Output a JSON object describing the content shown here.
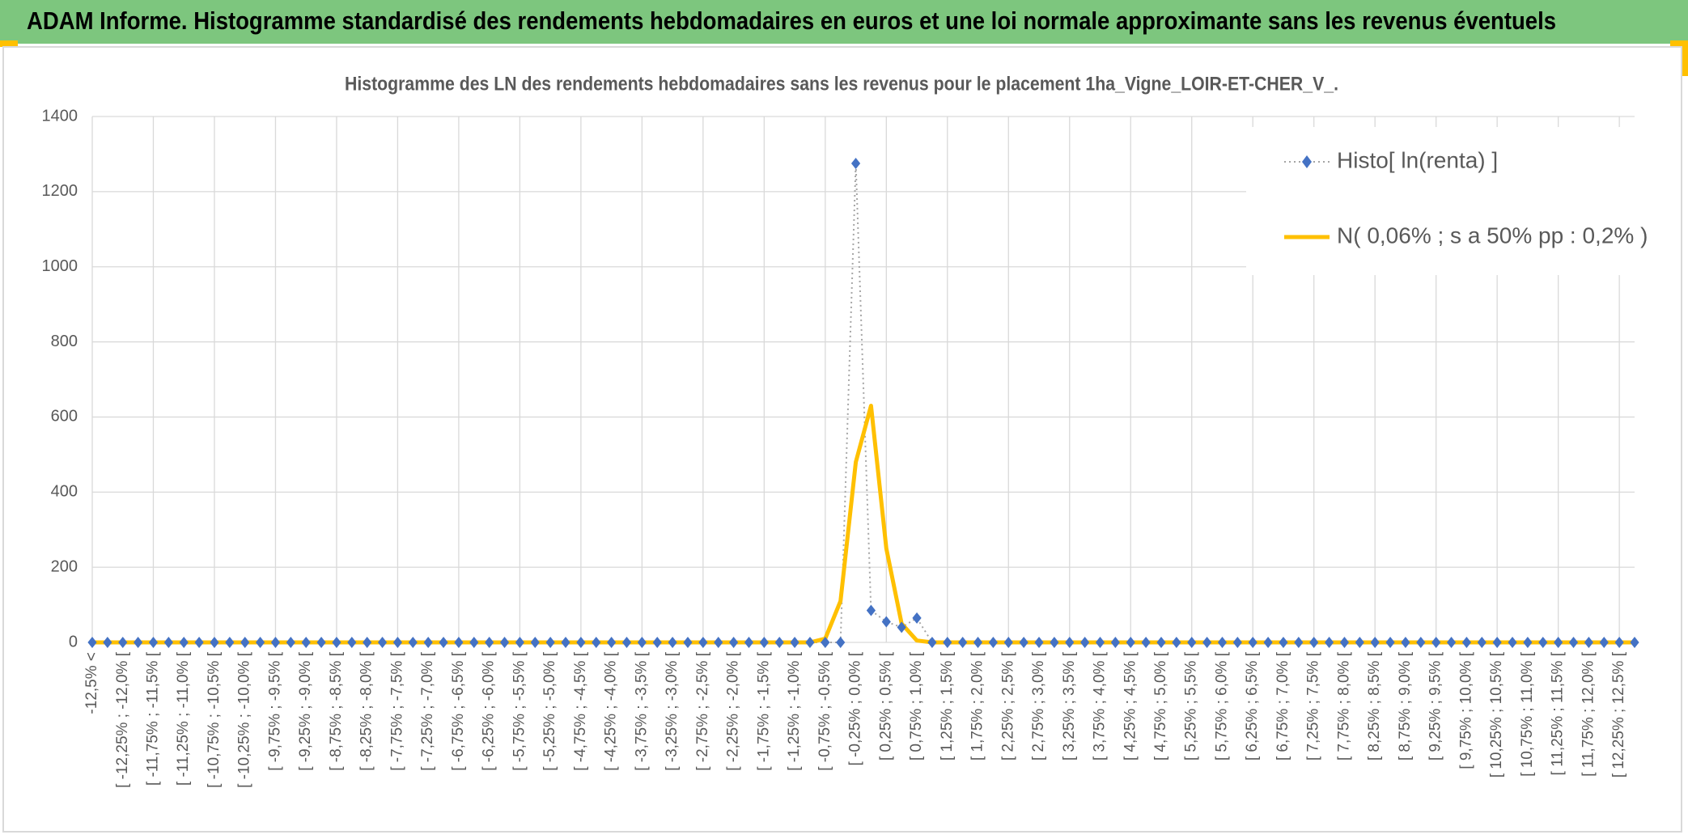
{
  "header": {
    "title": "ADAM Informe. Histogramme standardisé des rendements hebdomadaires en euros et une loi normale approximante sans les revenus éventuels"
  },
  "chart_data": {
    "type": "line",
    "title": "Histogramme des LN des rendements hebdomadaires sans les revenus pour le placement 1ha_Vigne_LOIR-ET-CHER_V_.",
    "categories": [
      "-12,5% <",
      null,
      "[ -12,25% ; -12,0% [",
      null,
      "[ -11,75% ; -11,5% [",
      null,
      "[ -11,25% ; -11,0% [",
      null,
      "[ -10,75% ; -10,5% [",
      null,
      "[ -10,25% ; -10,0% [",
      null,
      "[ -9,75% ; -9,5% [",
      null,
      "[ -9,25% ; -9,0% [",
      null,
      "[ -8,75% ; -8,5% [",
      null,
      "[ -8,25% ; -8,0% [",
      null,
      "[ -7,75% ; -7,5% [",
      null,
      "[ -7,25% ; -7,0% [",
      null,
      "[ -6,75% ; -6,5% [",
      null,
      "[ -6,25% ; -6,0% [",
      null,
      "[ -5,75% ; -5,5% [",
      null,
      "[ -5,25% ; -5,0% [",
      null,
      "[ -4,75% ; -4,5% [",
      null,
      "[ -4,25% ; -4,0% [",
      null,
      "[ -3,75% ; -3,5% [",
      null,
      "[ -3,25% ; -3,0% [",
      null,
      "[ -2,75% ; -2,5% [",
      null,
      "[ -2,25% ; -2,0% [",
      null,
      "[ -1,75% ; -1,5% [",
      null,
      "[ -1,25% ; -1,0% [",
      null,
      "[ -0,75% ; -0,5% [",
      null,
      "[ -0,25% ; 0,0% [",
      null,
      "[ 0,25% ; 0,5% [",
      null,
      "[ 0,75% ; 1,0% [",
      null,
      "[ 1,25% ; 1,5% [",
      null,
      "[ 1,75% ; 2,0% [",
      null,
      "[ 2,25% ; 2,5% [",
      null,
      "[ 2,75% ; 3,0% [",
      null,
      "[ 3,25% ; 3,5% [",
      null,
      "[ 3,75% ; 4,0% [",
      null,
      "[ 4,25% ; 4,5% [",
      null,
      "[ 4,75% ; 5,0% [",
      null,
      "[ 5,25% ; 5,5% [",
      null,
      "[ 5,75% ; 6,0% [",
      null,
      "[ 6,25% ; 6,5% [",
      null,
      "[ 6,75% ; 7,0% [",
      null,
      "[ 7,25% ; 7,5% [",
      null,
      "[ 7,75% ; 8,0% [",
      null,
      "[ 8,25% ; 8,5% [",
      null,
      "[ 8,75% ; 9,0% [",
      null,
      "[ 9,25% ; 9,5% [",
      null,
      "[ 9,75% ; 10,0% [",
      null,
      "[ 10,25% ; 10,5% [",
      null,
      "[ 10,75% ; 11,0% [",
      null,
      "[ 11,25% ; 11,5% [",
      null,
      "[ 11,75% ; 12,0% [",
      null,
      "[ 12,25% ; 12,5% [",
      null
    ],
    "series": [
      {
        "name": "Histo[ ln(renta) ]",
        "color": "#4472c4",
        "line_color": "#a5a5a5",
        "values": [
          0,
          0,
          0,
          0,
          0,
          0,
          0,
          0,
          0,
          0,
          0,
          0,
          0,
          0,
          0,
          0,
          0,
          0,
          0,
          0,
          0,
          0,
          0,
          0,
          0,
          0,
          0,
          0,
          0,
          0,
          0,
          0,
          0,
          0,
          0,
          0,
          0,
          0,
          0,
          0,
          0,
          0,
          0,
          0,
          0,
          0,
          0,
          0,
          0,
          0,
          1275,
          85,
          55,
          40,
          65,
          0,
          0,
          0,
          0,
          0,
          0,
          0,
          0,
          0,
          0,
          0,
          0,
          0,
          0,
          0,
          0,
          0,
          0,
          0,
          0,
          0,
          0,
          0,
          0,
          0,
          0,
          0,
          0,
          0,
          0,
          0,
          0,
          0,
          0,
          0,
          0,
          0,
          0,
          0,
          0,
          0,
          0,
          0,
          0,
          0,
          0,
          0
        ]
      },
      {
        "name": "N( 0,06% ; s a 50% pp : 0,2% )",
        "color": "#ffc000",
        "values": [
          0,
          0,
          0,
          0,
          0,
          0,
          0,
          0,
          0,
          0,
          0,
          0,
          0,
          0,
          0,
          0,
          0,
          0,
          0,
          0,
          0,
          0,
          0,
          0,
          0,
          0,
          0,
          0,
          0,
          0,
          0,
          0,
          0,
          0,
          0,
          0,
          0,
          0,
          0,
          0,
          0,
          0,
          0,
          0,
          0,
          0,
          0,
          0,
          10,
          110,
          480,
          630,
          250,
          50,
          5,
          0,
          0,
          0,
          0,
          0,
          0,
          0,
          0,
          0,
          0,
          0,
          0,
          0,
          0,
          0,
          0,
          0,
          0,
          0,
          0,
          0,
          0,
          0,
          0,
          0,
          0,
          0,
          0,
          0,
          0,
          0,
          0,
          0,
          0,
          0,
          0,
          0,
          0,
          0,
          0,
          0,
          0,
          0,
          0,
          0,
          0,
          0
        ]
      }
    ],
    "ylim": [
      0,
      1400
    ],
    "yticks": [
      0,
      200,
      400,
      600,
      800,
      1000,
      1200,
      1400
    ],
    "grid": true,
    "legend": "top-right"
  }
}
